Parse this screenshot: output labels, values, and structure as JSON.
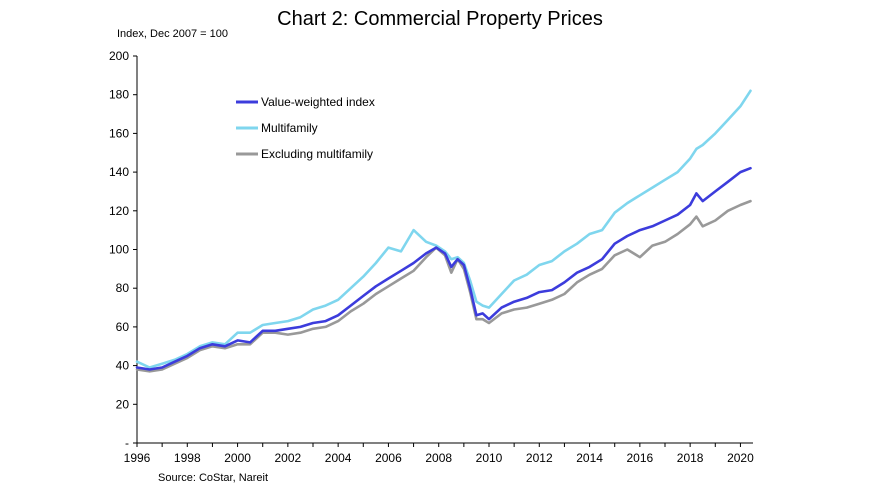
{
  "chart_data": {
    "type": "line",
    "title": "Chart 2: Commercial Property Prices",
    "ylabel": "Index, Dec 2007 = 100",
    "xlabel": "",
    "source": "Source: CoStar, Nareit",
    "ylim": [
      0,
      200
    ],
    "xlim": [
      1996.0,
      2020.5
    ],
    "y_ticks": [
      0,
      20,
      40,
      60,
      80,
      100,
      120,
      140,
      160,
      180,
      200
    ],
    "y_tick_labels": [
      "-",
      "20",
      "40",
      "60",
      "80",
      "100",
      "120",
      "140",
      "160",
      "180",
      "200"
    ],
    "x_ticks": [
      1996,
      1998,
      2000,
      2002,
      2004,
      2006,
      2008,
      2010,
      2012,
      2014,
      2016,
      2018,
      2020
    ],
    "x_tick_labels": [
      "1996",
      "1998",
      "2000",
      "2002",
      "2004",
      "2006",
      "2008",
      "2010",
      "2012",
      "2014",
      "2016",
      "2018",
      "2020"
    ],
    "grid": false,
    "legend_position": "upper-left",
    "series": [
      {
        "name": "Value-weighted index",
        "color": "#3c3cdc",
        "x": [
          1996.0,
          1996.5,
          1997.0,
          1997.5,
          1998.0,
          1998.5,
          1999.0,
          1999.5,
          2000.0,
          2000.5,
          2001.0,
          2001.5,
          2002.0,
          2002.5,
          2003.0,
          2003.5,
          2004.0,
          2004.5,
          2005.0,
          2005.5,
          2006.0,
          2006.5,
          2007.0,
          2007.5,
          2007.9,
          2008.25,
          2008.5,
          2008.75,
          2009.0,
          2009.25,
          2009.5,
          2009.75,
          2010.0,
          2010.5,
          2011.0,
          2011.5,
          2012.0,
          2012.5,
          2013.0,
          2013.5,
          2014.0,
          2014.5,
          2015.0,
          2015.5,
          2016.0,
          2016.5,
          2017.0,
          2017.5,
          2018.0,
          2018.25,
          2018.5,
          2019.0,
          2019.5,
          2020.0,
          2020.4
        ],
        "values": [
          39,
          38,
          39,
          42,
          45,
          49,
          51,
          50,
          53,
          52,
          58,
          58,
          59,
          60,
          62,
          63,
          66,
          71,
          76,
          81,
          85,
          89,
          93,
          98,
          101,
          98,
          91,
          95,
          92,
          80,
          66,
          67,
          64,
          70,
          73,
          75,
          78,
          79,
          83,
          88,
          91,
          95,
          103,
          107,
          110,
          112,
          115,
          118,
          123,
          129,
          125,
          130,
          135,
          140,
          142
        ]
      },
      {
        "name": "Multifamily",
        "color": "#7fd6ee",
        "x": [
          1996.0,
          1996.5,
          1997.0,
          1997.5,
          1998.0,
          1998.5,
          1999.0,
          1999.5,
          2000.0,
          2000.5,
          2001.0,
          2001.5,
          2002.0,
          2002.5,
          2003.0,
          2003.5,
          2004.0,
          2004.5,
          2005.0,
          2005.5,
          2006.0,
          2006.5,
          2007.0,
          2007.5,
          2007.9,
          2008.25,
          2008.5,
          2008.75,
          2009.0,
          2009.25,
          2009.5,
          2009.75,
          2010.0,
          2010.5,
          2011.0,
          2011.5,
          2012.0,
          2012.5,
          2013.0,
          2013.5,
          2014.0,
          2014.5,
          2015.0,
          2015.5,
          2016.0,
          2016.5,
          2017.0,
          2017.5,
          2018.0,
          2018.25,
          2018.5,
          2019.0,
          2019.5,
          2020.0,
          2020.4
        ],
        "values": [
          42,
          39,
          41,
          43,
          46,
          50,
          52,
          51,
          57,
          57,
          61,
          62,
          63,
          65,
          69,
          71,
          74,
          80,
          86,
          93,
          101,
          99,
          110,
          104,
          102,
          99,
          95,
          96,
          93,
          84,
          73,
          71,
          70,
          77,
          84,
          87,
          92,
          94,
          99,
          103,
          108,
          110,
          119,
          124,
          128,
          132,
          136,
          140,
          147,
          152,
          154,
          160,
          167,
          174,
          182
        ]
      },
      {
        "name": "Excluding multifamily",
        "color": "#999999",
        "x": [
          1996.0,
          1996.5,
          1997.0,
          1997.5,
          1998.0,
          1998.5,
          1999.0,
          1999.5,
          2000.0,
          2000.5,
          2001.0,
          2001.5,
          2002.0,
          2002.5,
          2003.0,
          2003.5,
          2004.0,
          2004.5,
          2005.0,
          2005.5,
          2006.0,
          2006.5,
          2007.0,
          2007.5,
          2007.9,
          2008.25,
          2008.5,
          2008.75,
          2009.0,
          2009.25,
          2009.5,
          2009.75,
          2010.0,
          2010.5,
          2011.0,
          2011.5,
          2012.0,
          2012.5,
          2013.0,
          2013.5,
          2014.0,
          2014.5,
          2015.0,
          2015.5,
          2016.0,
          2016.5,
          2017.0,
          2017.5,
          2018.0,
          2018.25,
          2018.5,
          2019.0,
          2019.5,
          2020.0,
          2020.4
        ],
        "values": [
          38,
          37,
          38,
          41,
          44,
          48,
          50,
          49,
          51,
          51,
          57,
          57,
          56,
          57,
          59,
          60,
          63,
          68,
          72,
          77,
          81,
          85,
          89,
          96,
          101,
          97,
          88,
          95,
          90,
          78,
          64,
          64,
          62,
          67,
          69,
          70,
          72,
          74,
          77,
          83,
          87,
          90,
          97,
          100,
          96,
          102,
          104,
          108,
          113,
          117,
          112,
          115,
          120,
          123,
          125
        ]
      }
    ]
  }
}
